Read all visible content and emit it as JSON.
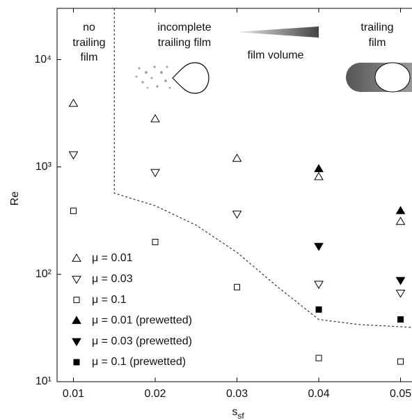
{
  "chart_data": {
    "type": "scatter",
    "xlabel": "s",
    "xlabel_subscript": "sf",
    "ylabel": "Re",
    "xlim": [
      0.008,
      0.0514
    ],
    "xticks": [
      0.01,
      0.02,
      0.03,
      0.04,
      0.05
    ],
    "ylim": [
      10,
      30000
    ],
    "yscale": "log",
    "yticks": [
      {
        "value": 10,
        "label": "10¹"
      },
      {
        "value": 100,
        "label": "10²"
      },
      {
        "value": 1000,
        "label": "10³"
      },
      {
        "value": 10000,
        "label": "10⁴"
      }
    ],
    "legend": "lower left",
    "annotations": [
      {
        "lines": [
          "no",
          "trailing",
          "film"
        ]
      },
      {
        "lines": [
          "incomplete",
          "trailing film"
        ]
      },
      {
        "lines": [
          "film volume"
        ]
      },
      {
        "lines": [
          "trailing",
          "film"
        ]
      }
    ],
    "series": [
      {
        "name": "μ = 0.01",
        "marker": "triangle-up",
        "filled": false,
        "color": "#000",
        "x": [
          0.01,
          0.02,
          0.03,
          0.04,
          0.05
        ],
        "values": [
          3900,
          2800,
          1200,
          810,
          310
        ]
      },
      {
        "name": "μ = 0.03",
        "marker": "triangle-down",
        "filled": false,
        "color": "#000",
        "x": [
          0.01,
          0.02,
          0.03,
          0.04,
          0.05
        ],
        "values": [
          1300,
          890,
          365,
          81,
          67
        ]
      },
      {
        "name": "μ = 0.1",
        "marker": "square",
        "filled": false,
        "color": "#000",
        "x": [
          0.01,
          0.02,
          0.03,
          0.04,
          0.05
        ],
        "values": [
          390,
          200,
          76,
          16.6,
          15.4
        ]
      },
      {
        "name": "μ = 0.01 (prewetted)",
        "marker": "triangle-up",
        "filled": true,
        "color": "#000",
        "x": [
          0.04,
          0.05
        ],
        "values": [
          960,
          390
        ]
      },
      {
        "name": "μ = 0.03 (prewetted)",
        "marker": "triangle-down",
        "filled": true,
        "color": "#000",
        "x": [
          0.04,
          0.05
        ],
        "values": [
          183,
          88
        ]
      },
      {
        "name": "μ = 0.1 (prewetted)",
        "marker": "square",
        "filled": true,
        "color": "#000",
        "x": [
          0.04,
          0.05
        ],
        "values": [
          47,
          38
        ]
      }
    ],
    "lines": [
      {
        "style": "dashed",
        "color": "#333",
        "x": [
          0.015,
          0.015,
          0.02,
          0.025,
          0.03,
          0.035,
          0.04,
          0.045,
          0.05,
          0.0514
        ],
        "values": [
          30000,
          570,
          435,
          287,
          160,
          76,
          38,
          34,
          32.5,
          32
        ]
      }
    ]
  }
}
